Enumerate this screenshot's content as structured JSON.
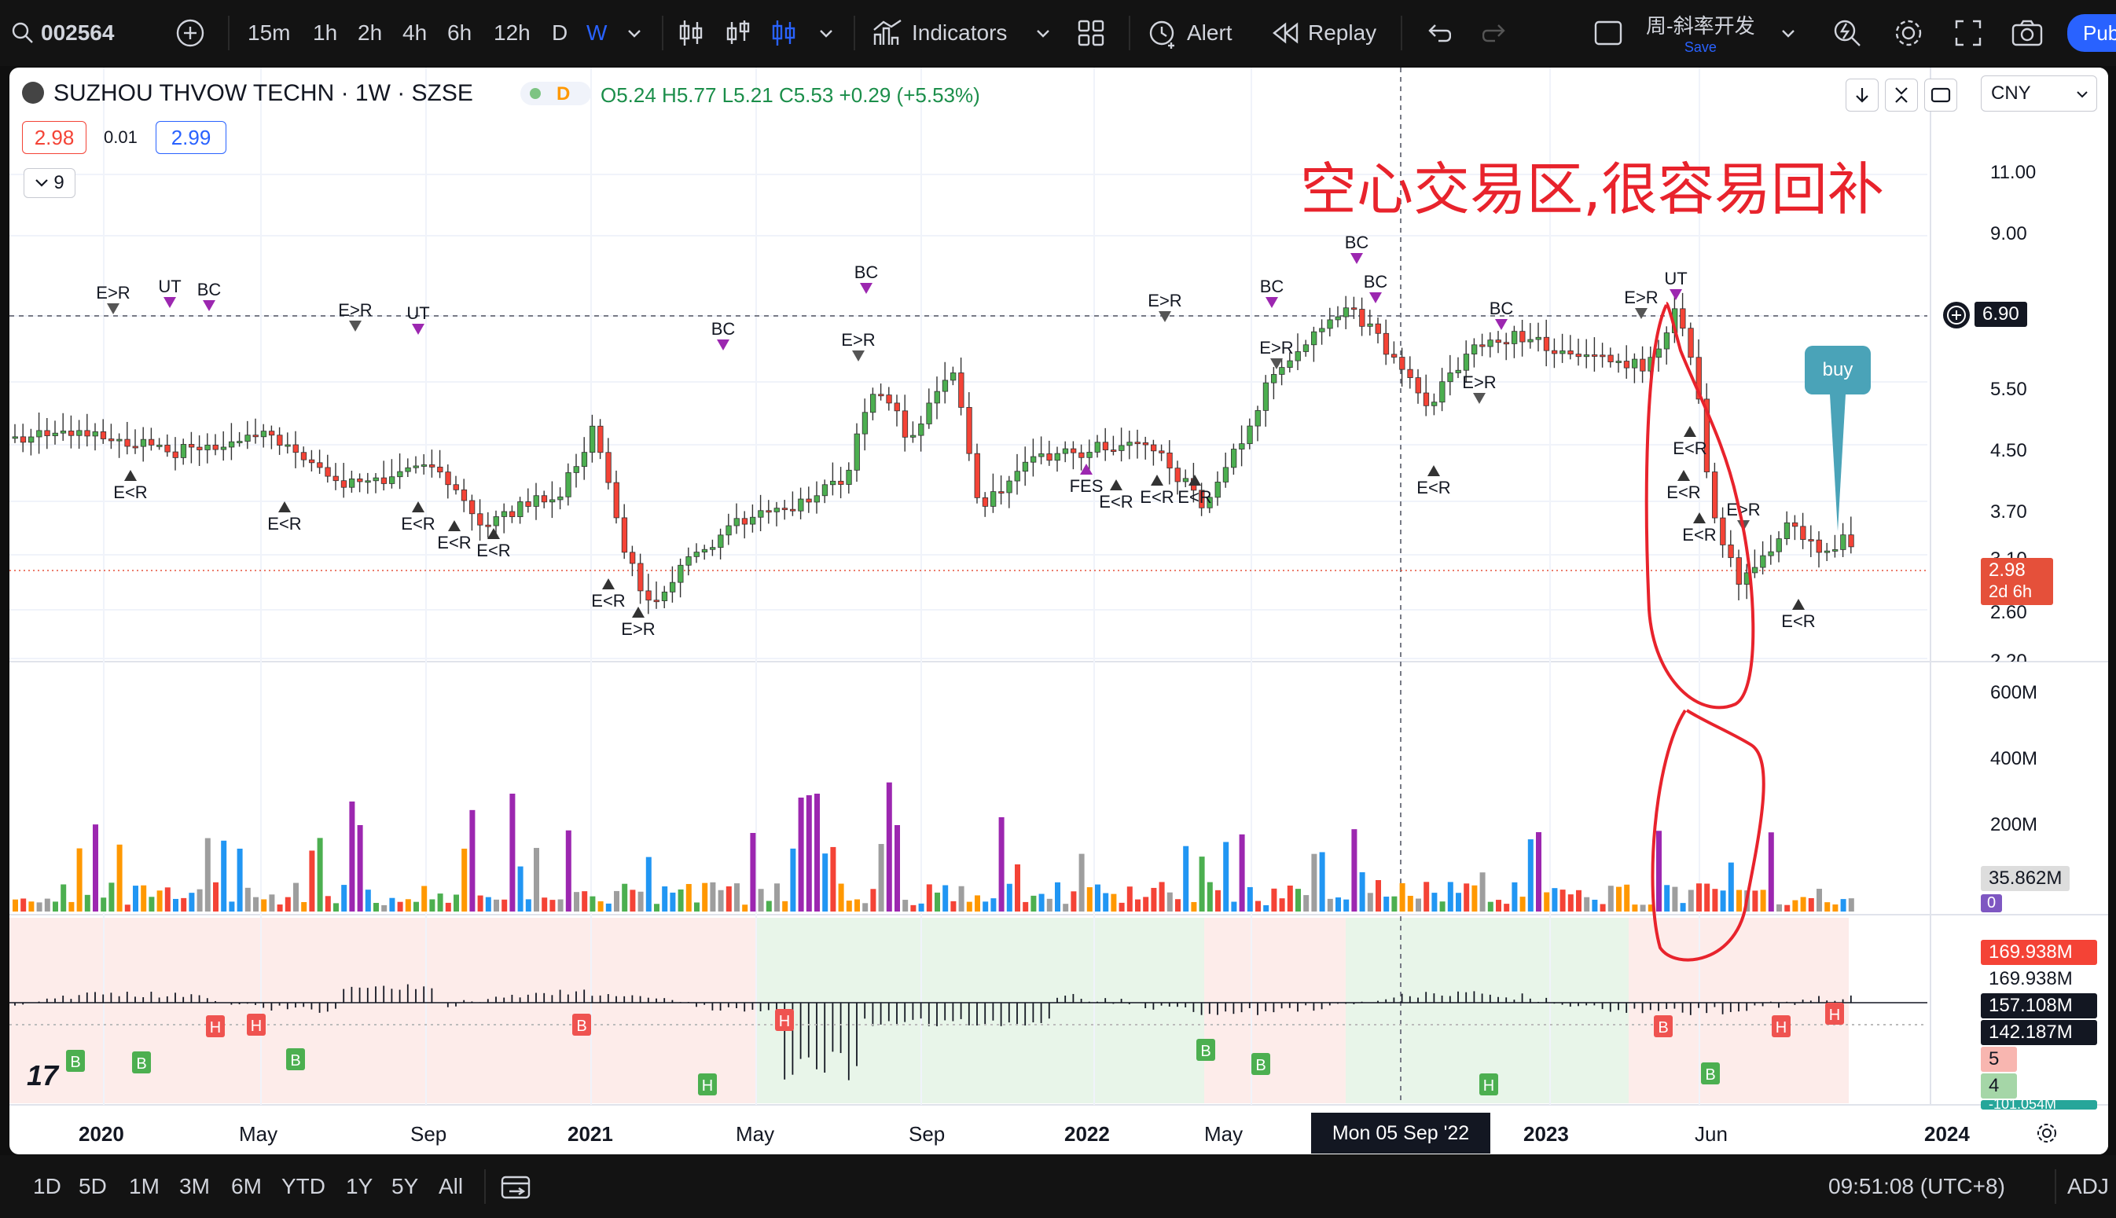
{
  "toolbar": {
    "symbol": "002564",
    "intervals": [
      "15m",
      "1h",
      "2h",
      "4h",
      "6h",
      "12h",
      "D",
      "W"
    ],
    "active_interval": "W",
    "indicators_label": "Indicators",
    "alert_label": "Alert",
    "replay_label": "Replay",
    "layout_name": "周-斜率开发",
    "layout_save": "Save",
    "publish_label": "Pub"
  },
  "legend": {
    "title": "SUZHOU THVOW TECHN · 1W · SZSE",
    "exchange_badge": "D",
    "ohlc": "O5.24 H5.77 L5.21 C5.53 +0.29 (+5.53%)",
    "bid": "2.98",
    "spread": "0.01",
    "ask": "2.99",
    "indicator_count": "9"
  },
  "currency": "CNY",
  "annotation": "空心交易区,很容易回补",
  "buy_label": "buy",
  "price_axis": [
    "11.00",
    "9.00",
    "6.90",
    "5.50",
    "4.50",
    "3.70",
    "3.10",
    "2.60",
    "2.20"
  ],
  "crosshair_price": "6.90",
  "last_price": "2.98",
  "countdown": "2d 6h",
  "volume_axis": [
    "600M",
    "400M",
    "200M"
  ],
  "volume_value": "35.862M",
  "volume_zero": "0",
  "osc_values": [
    "169.938M",
    "169.938M",
    "157.108M",
    "142.187M",
    "5",
    "4"
  ],
  "osc_bottom_clip": "-101.054M",
  "time_axis": [
    "2020",
    "May",
    "Sep",
    "2021",
    "May",
    "Sep",
    "2022",
    "May",
    "Mon 05 Sep '22",
    "2023",
    "Jun",
    "2024"
  ],
  "crosshair_date": "Mon 05 Sep '22",
  "ranges": [
    "1D",
    "5D",
    "1M",
    "3M",
    "6M",
    "YTD",
    "1Y",
    "5Y",
    "All"
  ],
  "clock": "09:51:08 (UTC+8)",
  "adj_label": "ADJ",
  "markers": [
    "E>R",
    "UT",
    "BC",
    "E<R",
    "E>R",
    "UT",
    "E<R",
    "E<R",
    "E<R",
    "E<R",
    "BC",
    "E<R",
    "E>R",
    "BC",
    "E>R",
    "FES",
    "E<R",
    "E<R",
    "E<R",
    "E>R",
    "BC",
    "E>R",
    "BC",
    "BC",
    "E<R",
    "E>R",
    "BC",
    "E<R",
    "E>R",
    "UT",
    "E<R",
    "E<R",
    "E>R",
    "E<R"
  ],
  "osc_badges": [
    "B",
    "B",
    "B",
    "H",
    "H",
    "B",
    "H",
    "H",
    "B",
    "B",
    "H",
    "B",
    "B",
    "H",
    "H"
  ],
  "colors": {
    "up": "#4caf50",
    "down": "#f44336",
    "strong": "#9c27b0",
    "orange": "#ff9800",
    "blue": "#2196f3",
    "annotation": "#e8232c",
    "buy": "#4aa3b8",
    "accent": "#2962ff"
  }
}
